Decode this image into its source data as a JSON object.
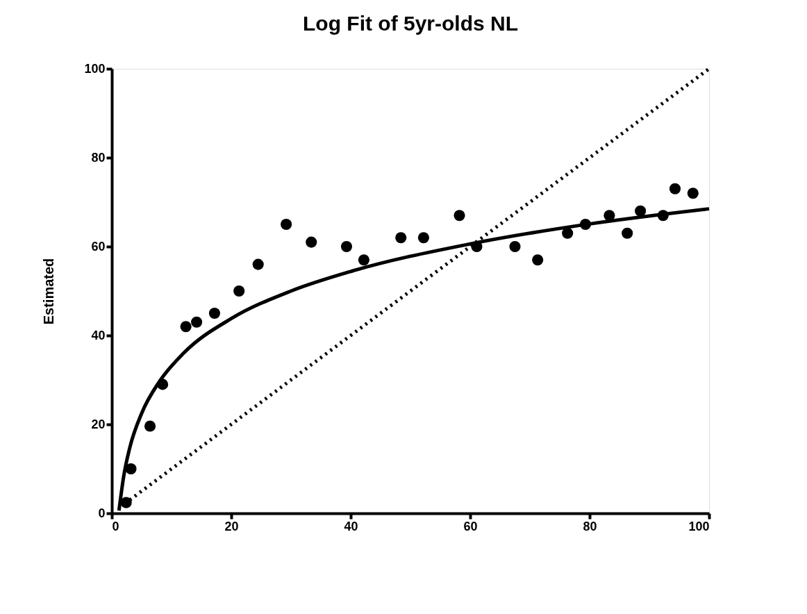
{
  "chart_data": {
    "type": "scatter",
    "title": "Log Fit of 5yr-olds NL",
    "ylabel": "Estimated",
    "xlim": [
      0,
      100
    ],
    "ylim": [
      0,
      100
    ],
    "xticks": [
      0,
      20,
      40,
      60,
      80,
      100
    ],
    "yticks": [
      0,
      20,
      40,
      60,
      80,
      100
    ],
    "grid": false,
    "series": [
      {
        "color": "#000000",
        "marker": "circle",
        "x": [
          2.4,
          3.2,
          6.4,
          8.5,
          12.4,
          14.2,
          17.2,
          21.3,
          24.5,
          29.2,
          33.4,
          39.3,
          42.2,
          48.4,
          52.2,
          58.2,
          61.1,
          67.5,
          71.3,
          76.3,
          79.3,
          83.3,
          86.3,
          88.5,
          92.3,
          94.3,
          97.3
        ],
        "values": [
          2.4,
          10,
          19.6,
          29,
          42,
          43,
          45,
          50,
          56,
          65,
          61,
          60,
          57,
          62,
          62,
          67,
          60,
          60,
          57,
          63,
          65,
          67,
          63,
          68,
          67,
          73,
          72
        ]
      },
      {
        "type": "line",
        "color": "#000000",
        "line_style": "solid",
        "x": [
          1.2,
          2,
          3,
          5,
          8,
          12,
          20,
          30,
          40,
          60,
          80,
          100
        ],
        "values": [
          0.6,
          8.4,
          14.7,
          22.5,
          29.7,
          36.0,
          43.8,
          50.0,
          54.4,
          60.6,
          65.1,
          68.5
        ]
      },
      {
        "type": "line",
        "color": "#000000",
        "line_style": "dotted",
        "x": [
          3,
          100
        ],
        "values": [
          3,
          100
        ]
      }
    ]
  }
}
